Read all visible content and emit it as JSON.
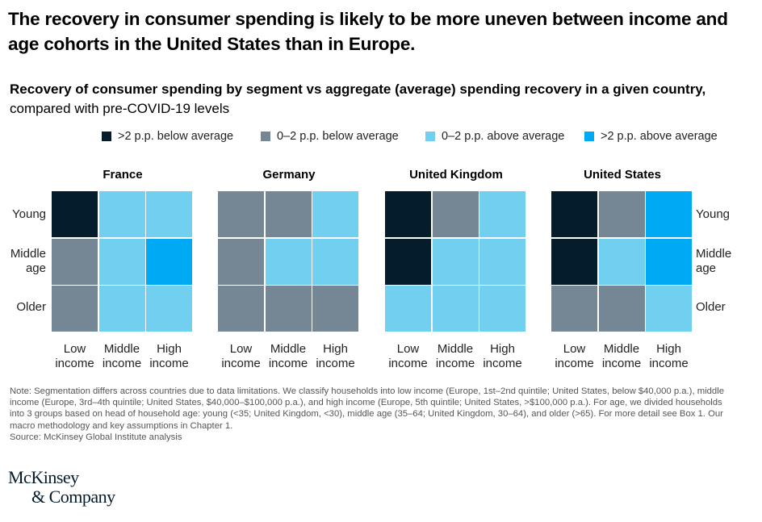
{
  "title": "The recovery in consumer spending is likely to be more uneven between income and age cohorts in the United States than in Europe.",
  "subtitle": {
    "bold": "Recovery of consumer spending by segment vs aggregate (average) spending recovery in a given country,",
    "regular": " compared with pre-COVID-19 levels"
  },
  "colors": {
    "far_below": "#051c2c",
    "below": "#758795",
    "above": "#71d0ef",
    "far_above": "#00a9f4"
  },
  "chart_data": {
    "type": "heatmap",
    "title": "Recovery of consumer spending by segment vs aggregate (average) spending recovery in a given country, compared with pre-COVID-19 levels",
    "legend": [
      {
        "key": "far_below",
        "label": ">2 p.p. below average"
      },
      {
        "key": "below",
        "label": "0–2 p.p. below average"
      },
      {
        "key": "above",
        "label": "0–2 p.p. above average"
      },
      {
        "key": "far_above",
        "label": ">2 p.p. above average"
      }
    ],
    "legend_position": "top",
    "rows": [
      "Young",
      "Middle age",
      "Older"
    ],
    "row_labels_display": [
      [
        "Young"
      ],
      [
        "Middle",
        "age"
      ],
      [
        "Older"
      ]
    ],
    "columns": [
      "Low income",
      "Middle income",
      "High income"
    ],
    "column_labels_display": [
      [
        "Low",
        "income"
      ],
      [
        "Middle",
        "income"
      ],
      [
        "High",
        "income"
      ]
    ],
    "panels": [
      {
        "name": "France",
        "cells": [
          [
            "far_below",
            "above",
            "above"
          ],
          [
            "below",
            "above",
            "far_above"
          ],
          [
            "below",
            "above",
            "above"
          ]
        ]
      },
      {
        "name": "Germany",
        "cells": [
          [
            "below",
            "below",
            "above"
          ],
          [
            "below",
            "above",
            "above"
          ],
          [
            "below",
            "below",
            "below"
          ]
        ]
      },
      {
        "name": "United Kingdom",
        "cells": [
          [
            "far_below",
            "below",
            "above"
          ],
          [
            "far_below",
            "above",
            "above"
          ],
          [
            "above",
            "above",
            "above"
          ]
        ]
      },
      {
        "name": "United States",
        "cells": [
          [
            "far_below",
            "below",
            "far_above"
          ],
          [
            "far_below",
            "above",
            "far_above"
          ],
          [
            "below",
            "below",
            "above"
          ]
        ]
      }
    ]
  },
  "note": "Note: Segmentation differs across countries due to data limitations. We classify households into low income (Europe, 1st–2nd quintile; United States, below $40,000 p.a.), middle income (Europe, 3rd–4th quintile; United States, $40,000–$100,000 p.a.), and high income (Europe, 5th quintile; United States, >$100,000 p.a.). For age, we divided households into 3 groups based on head of household age: young (<35; United Kingdom, <30), middle age (35–64; United Kingdom, 30–64), and older (>65). For more detail see Box 1. Our macro methodology and key assumptions in Chapter 1.",
  "source": "Source: McKinsey Global Institute analysis",
  "logo": {
    "line1": "McKinsey",
    "line2": "& Company"
  }
}
